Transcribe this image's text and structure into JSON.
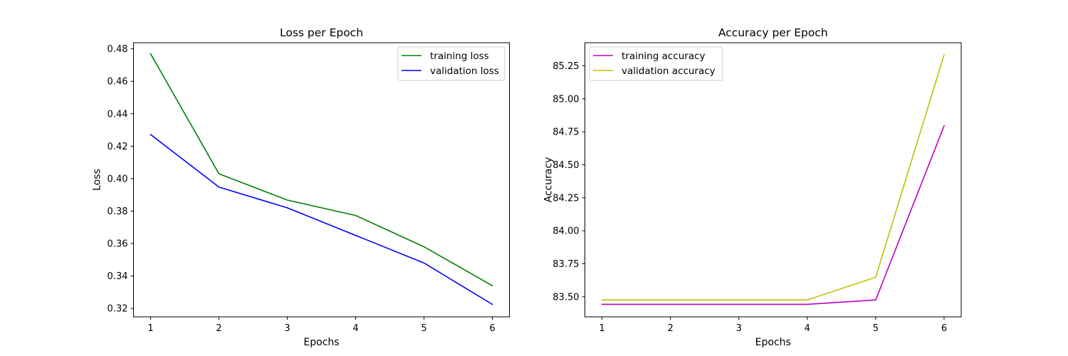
{
  "chart_data": [
    {
      "type": "line",
      "title": "Loss per Epoch",
      "xlabel": "Epochs",
      "ylabel": "Loss",
      "x": [
        1,
        2,
        3,
        4,
        5,
        6
      ],
      "xticks": [
        "1",
        "2",
        "3",
        "4",
        "5",
        "6"
      ],
      "yticks": [
        "0.32",
        "0.34",
        "0.36",
        "0.38",
        "0.40",
        "0.42",
        "0.44",
        "0.46",
        "0.48"
      ],
      "xlim": [
        0.75,
        6.25
      ],
      "ylim": [
        0.3148,
        0.4838
      ],
      "grid": false,
      "legend_position": "top-right",
      "series": [
        {
          "name": "training loss",
          "color": "#008000",
          "values": [
            0.477,
            0.403,
            0.3868,
            0.3773,
            0.358,
            0.334
          ]
        },
        {
          "name": "validation loss",
          "color": "#0000ff",
          "values": [
            0.4272,
            0.3948,
            0.382,
            0.365,
            0.348,
            0.3225
          ]
        }
      ]
    },
    {
      "type": "line",
      "title": "Accuracy per Epoch",
      "xlabel": "Epochs",
      "ylabel": "Accuracy",
      "x": [
        1,
        2,
        3,
        4,
        5,
        6
      ],
      "xticks": [
        "1",
        "2",
        "3",
        "4",
        "5",
        "6"
      ],
      "yticks": [
        "83.50",
        "83.75",
        "84.00",
        "84.25",
        "84.50",
        "84.75",
        "85.00",
        "85.25"
      ],
      "xlim": [
        0.75,
        6.25
      ],
      "ylim": [
        83.348,
        85.425
      ],
      "grid": false,
      "legend_position": "top-left",
      "series": [
        {
          "name": "training accuracy",
          "color": "#bf00bf",
          "values": [
            83.443,
            83.443,
            83.443,
            83.443,
            83.476,
            84.795
          ]
        },
        {
          "name": "validation accuracy",
          "color": "#bfbf00",
          "values": [
            83.476,
            83.476,
            83.476,
            83.476,
            83.648,
            85.333
          ]
        }
      ]
    }
  ]
}
